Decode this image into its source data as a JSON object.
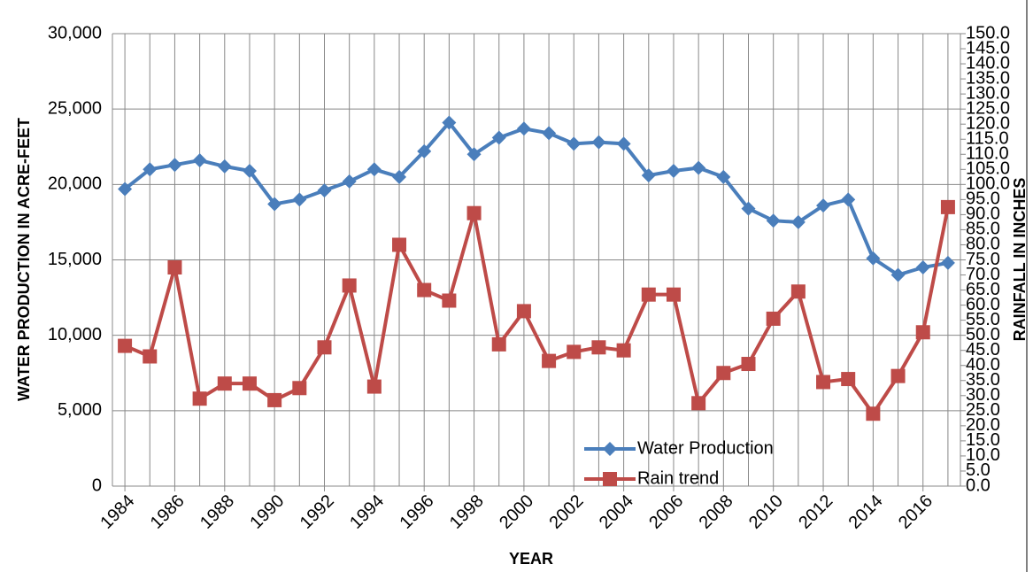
{
  "chart_data": {
    "type": "line",
    "x_label": "YEAR",
    "y_label": "WATER PRODUCTION IN ACRE-FEET",
    "y2_label": "RAINFALL IN INCHES",
    "x": [
      1984,
      1985,
      1986,
      1987,
      1988,
      1989,
      1990,
      1991,
      1992,
      1993,
      1994,
      1995,
      1996,
      1997,
      1998,
      1999,
      2000,
      2001,
      2002,
      2003,
      2004,
      2005,
      2006,
      2007,
      2008,
      2009,
      2010,
      2011,
      2012,
      2013,
      2014,
      2015,
      2016,
      2017
    ],
    "xlim": [
      1983.5,
      2017.5
    ],
    "xticks": [
      1984,
      1986,
      1988,
      1990,
      1992,
      1994,
      1996,
      1998,
      2000,
      2002,
      2004,
      2006,
      2008,
      2010,
      2012,
      2014,
      2016
    ],
    "ylim": [
      0,
      30000
    ],
    "yticks": [
      0,
      {
        "value": 5000,
        "label": "5,000"
      },
      {
        "value": 10000,
        "label": "10,000"
      },
      {
        "value": 15000,
        "label": "15,000"
      },
      {
        "value": 20000,
        "label": "20,000"
      },
      {
        "value": 25000,
        "label": "25,000"
      },
      {
        "value": 30000,
        "label": "30,000"
      }
    ],
    "y2lim": [
      0,
      150
    ],
    "y2ticks": [
      {
        "value": 0,
        "label": "0.0"
      },
      {
        "value": 5,
        "label": "5.0"
      },
      {
        "value": 10,
        "label": "10.0"
      },
      {
        "value": 15,
        "label": "15.0"
      },
      {
        "value": 20,
        "label": "20.0"
      },
      {
        "value": 25,
        "label": "25.0"
      },
      {
        "value": 30,
        "label": "30.0"
      },
      {
        "value": 35,
        "label": "35.0"
      },
      {
        "value": 40,
        "label": "40.0"
      },
      {
        "value": 45,
        "label": "45.0"
      },
      {
        "value": 50,
        "label": "50.0"
      },
      {
        "value": 55,
        "label": "55.0"
      },
      {
        "value": 60,
        "label": "60.0"
      },
      {
        "value": 65,
        "label": "65.0"
      },
      {
        "value": 70,
        "label": "70.0"
      },
      {
        "value": 75,
        "label": "75.0"
      },
      {
        "value": 80,
        "label": "80.0"
      },
      {
        "value": 85,
        "label": "85.0"
      },
      {
        "value": 90,
        "label": "90.0"
      },
      {
        "value": 95,
        "label": "95.0"
      },
      {
        "value": 100,
        "label": "100.0"
      },
      {
        "value": 105,
        "label": "105.0"
      },
      {
        "value": 110,
        "label": "110.0"
      },
      {
        "value": 115,
        "label": "115.0"
      },
      {
        "value": 120,
        "label": "120.0"
      },
      {
        "value": 125,
        "label": "125.0"
      },
      {
        "value": 130,
        "label": "130.0"
      },
      {
        "value": 135,
        "label": "135.0"
      },
      {
        "value": 140,
        "label": "140.0"
      },
      {
        "value": 145,
        "label": "145.0"
      },
      {
        "value": 150,
        "label": "150.0"
      }
    ],
    "grid": true,
    "legend": "lower right",
    "series": [
      {
        "name": "Water Production",
        "color": "#4a7ebb",
        "marker": "diamond",
        "values": [
          19700,
          21000,
          21300,
          21600,
          21200,
          20900,
          18700,
          19000,
          19600,
          20200,
          21000,
          20500,
          22200,
          24100,
          22000,
          23100,
          23700,
          23400,
          22700,
          22800,
          22700,
          20600,
          20900,
          21100,
          20500,
          18400,
          17600,
          17500,
          18600,
          19000,
          15100,
          14000,
          14500,
          14800
        ]
      },
      {
        "name": "Rain trend",
        "color": "#be4b48",
        "marker": "square",
        "axis": "y2",
        "values": [
          46.5,
          43,
          72.5,
          29,
          34,
          34,
          28.5,
          32.5,
          46,
          66.5,
          33,
          80,
          65,
          61.5,
          90.5,
          47,
          58,
          41.5,
          44.5,
          46,
          45,
          63.5,
          63.5,
          27.5,
          37.5,
          40.5,
          55.5,
          64.5,
          34.5,
          35.5,
          24,
          36.5,
          51,
          92.5
        ]
      }
    ]
  }
}
